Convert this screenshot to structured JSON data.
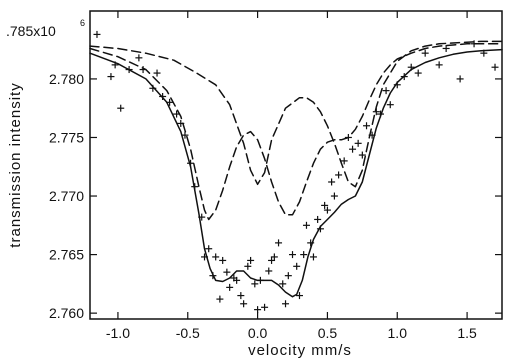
{
  "chart_data": {
    "type": "scatter",
    "title": "",
    "xlabel": "velocity  mm/s",
    "ylabel": "transmission  intensity",
    "y_multiplier_label": ".785x10",
    "y_multiplier_exponent": "6",
    "xlim": [
      -1.2,
      1.75
    ],
    "ylim": [
      2.7595,
      2.7858
    ],
    "x_ticks": [
      -1.0,
      -0.5,
      0.0,
      0.5,
      1.0,
      1.5
    ],
    "x_tick_labels": [
      "-1.0",
      "-0.5",
      "0.0",
      "0.5",
      "1.0",
      "1.5"
    ],
    "y_ticks": [
      2.76,
      2.765,
      2.77,
      2.775,
      2.78
    ],
    "y_tick_labels": [
      "2.760",
      "2.765",
      "2.770",
      "2.775",
      "2.780"
    ],
    "grid": false,
    "legend": "none",
    "series": [
      {
        "style": "points",
        "marker": "plus",
        "x": [
          -1.15,
          -1.05,
          -1.02,
          -0.98,
          -0.92,
          -0.85,
          -0.82,
          -0.75,
          -0.72,
          -0.68,
          -0.63,
          -0.58,
          -0.55,
          -0.52,
          -0.48,
          -0.45,
          -0.4,
          -0.38,
          -0.35,
          -0.32,
          -0.3,
          -0.27,
          -0.25,
          -0.22,
          -0.2,
          -0.17,
          -0.15,
          -0.12,
          -0.1,
          -0.07,
          -0.05,
          -0.02,
          0.0,
          0.02,
          0.05,
          0.08,
          0.1,
          0.12,
          0.15,
          0.18,
          0.2,
          0.22,
          0.25,
          0.28,
          0.3,
          0.33,
          0.35,
          0.38,
          0.4,
          0.43,
          0.45,
          0.48,
          0.5,
          0.53,
          0.55,
          0.58,
          0.62,
          0.65,
          0.68,
          0.72,
          0.75,
          0.78,
          0.82,
          0.85,
          0.88,
          0.92,
          0.95,
          1.0,
          1.05,
          1.1,
          1.15,
          1.2,
          1.3,
          1.35,
          1.45,
          1.55,
          1.62,
          1.7
        ],
        "y": [
          2.7838,
          2.7802,
          2.7812,
          2.7775,
          2.7808,
          2.7818,
          2.7808,
          2.7792,
          2.7805,
          2.7785,
          2.778,
          2.777,
          2.7762,
          2.7752,
          2.7728,
          2.7708,
          2.7682,
          2.7648,
          2.7655,
          2.7632,
          2.7648,
          2.7612,
          2.7645,
          2.7635,
          2.7622,
          2.763,
          2.7628,
          2.7615,
          2.7608,
          2.764,
          2.7645,
          2.7625,
          2.7603,
          2.7628,
          2.7605,
          2.7636,
          2.7645,
          2.7648,
          2.766,
          2.7625,
          2.7608,
          2.7632,
          2.765,
          2.764,
          2.7615,
          2.765,
          2.7675,
          2.766,
          2.7648,
          2.768,
          2.7672,
          2.7692,
          2.7688,
          2.7712,
          2.77,
          2.7718,
          2.773,
          2.775,
          2.774,
          2.7745,
          2.7735,
          2.776,
          2.7752,
          2.7772,
          2.777,
          2.779,
          2.7778,
          2.7795,
          2.7802,
          2.781,
          2.7805,
          2.7822,
          2.7812,
          2.7826,
          2.78,
          2.783,
          2.7822,
          2.781
        ]
      },
      {
        "style": "solid",
        "x": [
          -1.2,
          -1.0,
          -0.8,
          -0.65,
          -0.55,
          -0.48,
          -0.42,
          -0.38,
          -0.34,
          -0.3,
          -0.25,
          -0.2,
          -0.15,
          -0.1,
          -0.05,
          0.0,
          0.05,
          0.1,
          0.15,
          0.2,
          0.25,
          0.28,
          0.32,
          0.36,
          0.4,
          0.45,
          0.5,
          0.55,
          0.6,
          0.65,
          0.7,
          0.75,
          0.8,
          0.85,
          0.9,
          0.95,
          1.0,
          1.1,
          1.2,
          1.3,
          1.4,
          1.5,
          1.6,
          1.75
        ],
        "y": [
          2.7822,
          2.7813,
          2.78,
          2.778,
          2.7755,
          2.7725,
          2.7685,
          2.7655,
          2.7638,
          2.7628,
          2.7627,
          2.763,
          2.7636,
          2.7636,
          2.763,
          2.7628,
          2.7628,
          2.7628,
          2.7624,
          2.7618,
          2.7614,
          2.7616,
          2.7628,
          2.7648,
          2.7663,
          2.7674,
          2.768,
          2.7686,
          2.7693,
          2.7697,
          2.77,
          2.7712,
          2.7735,
          2.7758,
          2.7775,
          2.7788,
          2.7797,
          2.7808,
          2.7814,
          2.7818,
          2.7821,
          2.7823,
          2.7824,
          2.7825
        ]
      },
      {
        "style": "dashed",
        "x": [
          -1.2,
          -1.0,
          -0.8,
          -0.65,
          -0.55,
          -0.48,
          -0.42,
          -0.38,
          -0.35,
          -0.3,
          -0.25,
          -0.2,
          -0.15,
          -0.1,
          -0.05,
          0.0,
          0.05,
          0.1,
          0.15,
          0.2,
          0.25,
          0.3,
          0.35,
          0.4,
          0.45,
          0.5,
          0.55,
          0.6,
          0.65,
          0.7,
          0.75,
          0.8,
          0.85,
          0.9,
          0.95,
          1.0,
          1.1,
          1.2,
          1.3,
          1.4,
          1.5,
          1.6,
          1.75
        ],
        "y": [
          2.7826,
          2.7819,
          2.7808,
          2.779,
          2.7768,
          2.774,
          2.7708,
          2.7688,
          2.768,
          2.7688,
          2.7705,
          2.7725,
          2.7742,
          2.7752,
          2.7755,
          2.7748,
          2.7732,
          2.7712,
          2.7695,
          2.7684,
          2.7684,
          2.7695,
          2.7712,
          2.7728,
          2.774,
          2.7746,
          2.7748,
          2.7748,
          2.775,
          2.7757,
          2.7768,
          2.7782,
          2.7795,
          2.7805,
          2.7812,
          2.7817,
          2.7822,
          2.7826,
          2.7828,
          2.7829,
          2.783,
          2.783,
          2.783
        ]
      },
      {
        "style": "dashed",
        "x": [
          -1.2,
          -1.0,
          -0.8,
          -0.6,
          -0.45,
          -0.3,
          -0.2,
          -0.1,
          -0.05,
          0.0,
          0.05,
          0.1,
          0.2,
          0.3,
          0.35,
          0.4,
          0.45,
          0.5,
          0.55,
          0.6,
          0.65,
          0.7,
          0.75,
          0.8,
          0.85,
          0.9,
          1.0,
          1.1,
          1.2,
          1.3,
          1.45,
          1.6,
          1.75
        ],
        "y": [
          2.7828,
          2.7826,
          2.7822,
          2.7816,
          2.7806,
          2.7795,
          2.7778,
          2.7745,
          2.7722,
          2.771,
          2.772,
          2.7748,
          2.7775,
          2.7784,
          2.7784,
          2.778,
          2.7772,
          2.776,
          2.7745,
          2.7728,
          2.7712,
          2.7708,
          2.7722,
          2.775,
          2.7776,
          2.7795,
          2.7815,
          2.7824,
          2.7828,
          2.783,
          2.7831,
          2.7832,
          2.7832
        ]
      }
    ]
  }
}
